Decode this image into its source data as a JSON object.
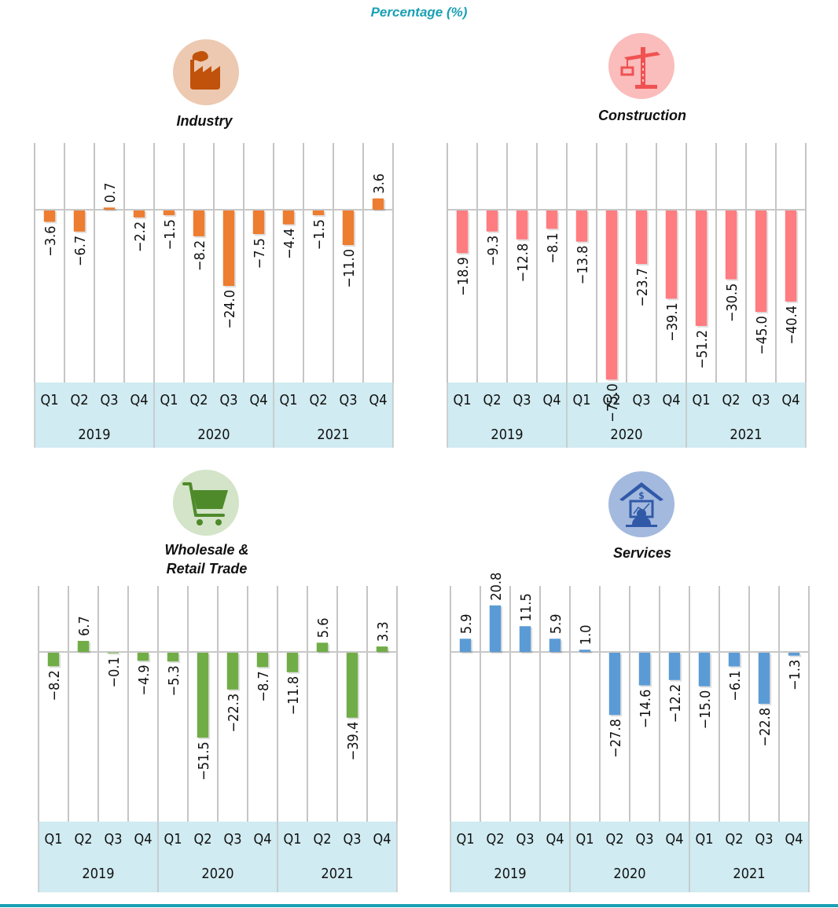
{
  "page": {
    "title": "Percentage (%)"
  },
  "panels": [
    {
      "id": "industry",
      "title_lines": [
        "Industry"
      ],
      "icon": "factory-icon",
      "color": "#ed7d31",
      "icon_bg": "#ecc9b0",
      "icon_fg": "#c0520b"
    },
    {
      "id": "construction",
      "title_lines": [
        "Construction"
      ],
      "icon": "crane-icon",
      "color": "#ff7c80",
      "icon_bg": "#fbbcbc",
      "icon_fg": "#f05252"
    },
    {
      "id": "wholesale-retail",
      "title_lines": [
        "Wholesale &",
        "Retail Trade"
      ],
      "icon": "shopping-cart-icon",
      "color": "#70ad47",
      "icon_bg": "#d3e4c8",
      "icon_fg": "#4e8a2a"
    },
    {
      "id": "services",
      "title_lines": [
        "Services"
      ],
      "icon": "bank-computer-icon",
      "color": "#5b9bd5",
      "icon_bg": "#a4b9de",
      "icon_fg": "#3059a8"
    }
  ],
  "chart_data": [
    {
      "type": "bar",
      "title": "Industry",
      "xlabel": "",
      "ylabel": "Percentage (%)",
      "categories": [
        "Q1",
        "Q2",
        "Q3",
        "Q4",
        "Q1",
        "Q2",
        "Q3",
        "Q4",
        "Q1",
        "Q2",
        "Q3",
        "Q4"
      ],
      "groups": [
        "2019",
        "2020",
        "2021"
      ],
      "values": [
        -3.6,
        -6.7,
        0.7,
        -2.2,
        -1.5,
        -8.2,
        -24.0,
        -7.5,
        -4.4,
        -1.5,
        -11.0,
        3.6
      ],
      "labels": [
        "-3.6",
        "-6.7",
        "0.7",
        "-2.2",
        "-1.5",
        "-8.2",
        "-24.0",
        "-7.5",
        "-4.4",
        "-1.5",
        "-11.0",
        "3.6"
      ],
      "grid": true
    },
    {
      "type": "bar",
      "title": "Construction",
      "xlabel": "",
      "ylabel": "Percentage (%)",
      "categories": [
        "Q1",
        "Q2",
        "Q3",
        "Q4",
        "Q1",
        "Q2",
        "Q3",
        "Q4",
        "Q1",
        "Q2",
        "Q3",
        "Q4"
      ],
      "groups": [
        "2019",
        "2020",
        "2021"
      ],
      "values": [
        -18.9,
        -9.3,
        -12.8,
        -8.1,
        -13.8,
        -75.0,
        -23.7,
        -39.1,
        -51.2,
        -30.5,
        -45.0,
        -40.4
      ],
      "labels": [
        "-18.9",
        "-9.3",
        "-12.8",
        "-8.1",
        "-13.8",
        "-75.0",
        "-23.7",
        "-39.1",
        "-51.2",
        "-30.5",
        "-45.0",
        "-40.4"
      ],
      "grid": true
    },
    {
      "type": "bar",
      "title": "Wholesale & Retail Trade",
      "xlabel": "",
      "ylabel": "Percentage (%)",
      "categories": [
        "Q1",
        "Q2",
        "Q3",
        "Q4",
        "Q1",
        "Q2",
        "Q3",
        "Q4",
        "Q1",
        "Q2",
        "Q3",
        "Q4"
      ],
      "groups": [
        "2019",
        "2020",
        "2021"
      ],
      "values": [
        -8.2,
        6.7,
        -0.1,
        -4.9,
        -5.3,
        -51.5,
        -22.3,
        -8.7,
        -11.8,
        5.6,
        -39.4,
        3.3
      ],
      "labels": [
        "-8.2",
        "6.7",
        "-0.1",
        "-4.9",
        "-5.3",
        "-51.5",
        "-22.3",
        "-8.7",
        "-11.8",
        "5.6",
        "-39.4",
        "3.3"
      ],
      "grid": true
    },
    {
      "type": "bar",
      "title": "Services",
      "xlabel": "",
      "ylabel": "Percentage (%)",
      "categories": [
        "Q1",
        "Q2",
        "Q3",
        "Q4",
        "Q1",
        "Q2",
        "Q3",
        "Q4",
        "Q1",
        "Q2",
        "Q3",
        "Q4"
      ],
      "groups": [
        "2019",
        "2020",
        "2021"
      ],
      "values": [
        5.9,
        20.8,
        11.5,
        5.9,
        1.0,
        -27.8,
        -14.6,
        -12.2,
        -15.0,
        -6.1,
        -22.8,
        -1.3
      ],
      "labels": [
        "5.9",
        "20.8",
        "11.5",
        "5.9",
        "1.0",
        "-27.8",
        "-14.6",
        "-12.2",
        "-15.0",
        "-6.1",
        "-22.8",
        "-1.3"
      ],
      "grid": true
    }
  ]
}
